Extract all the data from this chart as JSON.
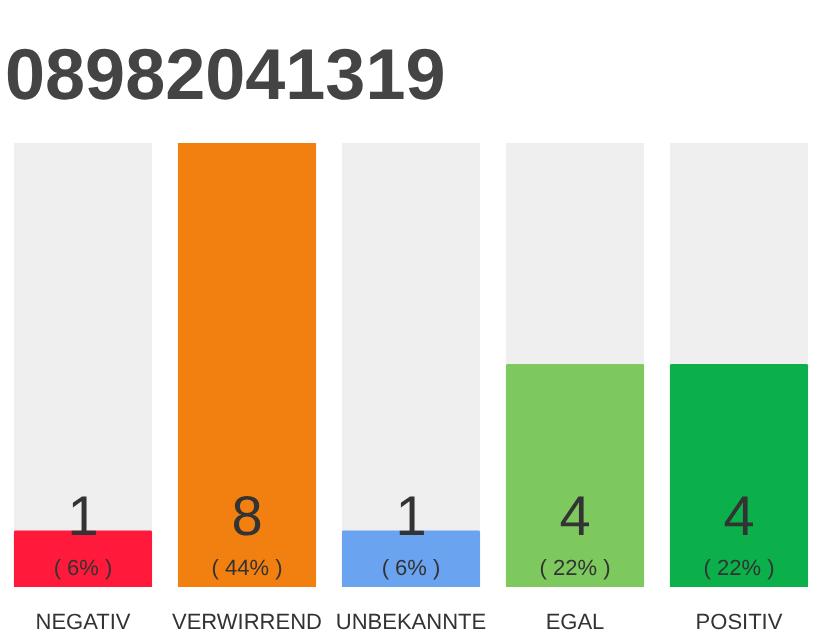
{
  "chart_data": {
    "type": "bar",
    "title": "08982041319",
    "categories": [
      "NEGATIV",
      "VERWIRREND",
      "UNBEKANNTE",
      "EGAL",
      "POSITIV"
    ],
    "values": [
      1,
      8,
      1,
      4,
      4
    ],
    "colors": [
      "#ff1a3c",
      "#f28010",
      "#6aa3f0",
      "#7dc95e",
      "#0bb04a"
    ],
    "data_labels": true,
    "annotations": [
      "( 6% )",
      "( 44% )",
      "( 6% )",
      "( 22% )",
      "( 22% )"
    ],
    "grid": false
  }
}
